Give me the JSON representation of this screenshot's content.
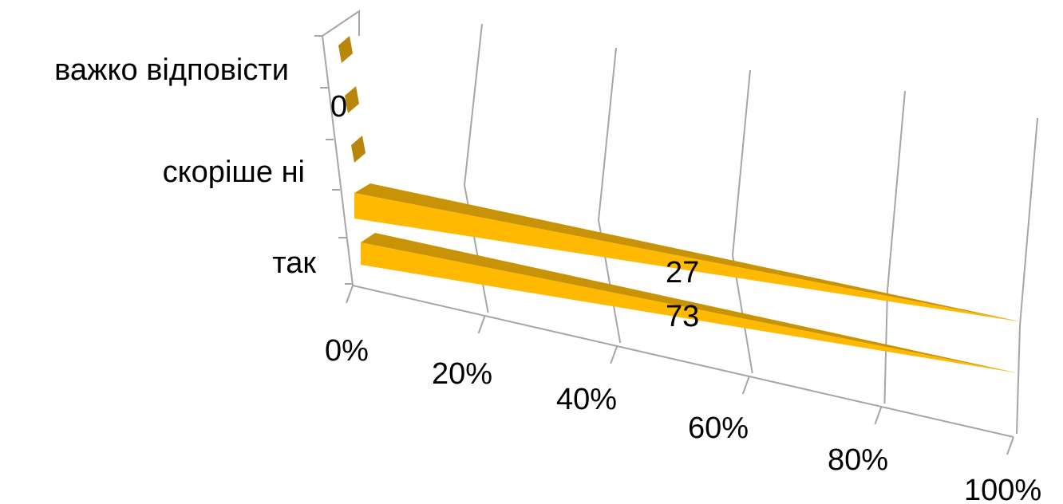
{
  "chart_data": {
    "type": "bar",
    "orientation": "horizontal",
    "three_d": true,
    "categories": [
      "так",
      "скоріше ні",
      "важко відповісти"
    ],
    "values": [
      73,
      27,
      0
    ],
    "data_labels": [
      "73",
      "27",
      "0"
    ],
    "x_ticks": [
      "0%",
      "20%",
      "40%",
      "60%",
      "80%",
      "100%"
    ],
    "xlim": [
      0,
      100
    ],
    "title": "",
    "xlabel": "",
    "ylabel": "",
    "grid": true,
    "legend": "none",
    "colors": {
      "bar_front": "#ffb900",
      "bar_top": "#c99307",
      "bar_side": "#b8860b",
      "axis": "#a6a6a6"
    }
  }
}
